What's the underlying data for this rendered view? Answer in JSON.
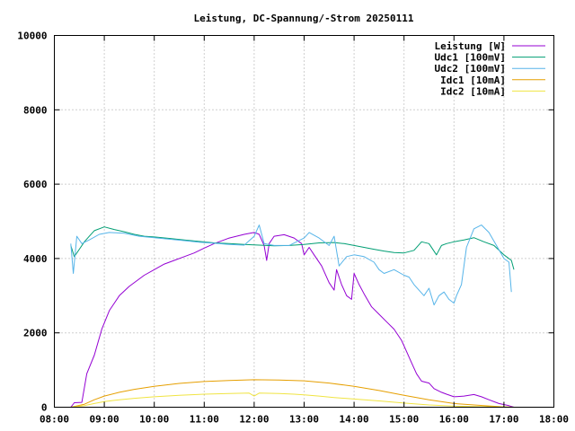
{
  "chart_data": {
    "type": "line",
    "title": "Leistung, DC-Spannung/-Strom 20250111",
    "xlabel": "",
    "ylabel": "",
    "xlim_hours": [
      8,
      18
    ],
    "ylim": [
      0,
      10000
    ],
    "x_ticks": [
      "08:00",
      "09:00",
      "10:00",
      "11:00",
      "12:00",
      "13:00",
      "14:00",
      "15:00",
      "16:00",
      "17:00",
      "18:00"
    ],
    "y_ticks": [
      "0",
      "2000",
      "4000",
      "6000",
      "8000",
      "10000"
    ],
    "grid": true,
    "legend_position": "top-right",
    "series": [
      {
        "name": "Leistung [W]",
        "color": "#9400d3",
        "points": [
          [
            8.33,
            0
          ],
          [
            8.4,
            120
          ],
          [
            8.55,
            130
          ],
          [
            8.65,
            900
          ],
          [
            8.8,
            1400
          ],
          [
            8.95,
            2100
          ],
          [
            9.1,
            2600
          ],
          [
            9.3,
            3000
          ],
          [
            9.5,
            3250
          ],
          [
            9.8,
            3550
          ],
          [
            10.0,
            3700
          ],
          [
            10.2,
            3850
          ],
          [
            10.4,
            3950
          ],
          [
            10.6,
            4050
          ],
          [
            10.8,
            4150
          ],
          [
            11.0,
            4280
          ],
          [
            11.2,
            4400
          ],
          [
            11.5,
            4550
          ],
          [
            11.8,
            4650
          ],
          [
            12.0,
            4700
          ],
          [
            12.1,
            4650
          ],
          [
            12.2,
            4350
          ],
          [
            12.25,
            3950
          ],
          [
            12.3,
            4400
          ],
          [
            12.4,
            4600
          ],
          [
            12.6,
            4640
          ],
          [
            12.8,
            4550
          ],
          [
            12.95,
            4400
          ],
          [
            13.0,
            4100
          ],
          [
            13.1,
            4300
          ],
          [
            13.2,
            4100
          ],
          [
            13.35,
            3800
          ],
          [
            13.45,
            3500
          ],
          [
            13.5,
            3350
          ],
          [
            13.6,
            3150
          ],
          [
            13.65,
            3700
          ],
          [
            13.75,
            3300
          ],
          [
            13.85,
            3000
          ],
          [
            13.95,
            2900
          ],
          [
            14.0,
            3600
          ],
          [
            14.1,
            3300
          ],
          [
            14.2,
            3050
          ],
          [
            14.35,
            2700
          ],
          [
            14.5,
            2500
          ],
          [
            14.65,
            2300
          ],
          [
            14.8,
            2100
          ],
          [
            14.95,
            1800
          ],
          [
            15.05,
            1500
          ],
          [
            15.15,
            1200
          ],
          [
            15.25,
            900
          ],
          [
            15.35,
            700
          ],
          [
            15.5,
            650
          ],
          [
            15.6,
            500
          ],
          [
            15.75,
            400
          ],
          [
            15.85,
            350
          ],
          [
            16.0,
            280
          ],
          [
            16.2,
            300
          ],
          [
            16.4,
            340
          ],
          [
            16.55,
            280
          ],
          [
            16.7,
            200
          ],
          [
            16.9,
            100
          ],
          [
            17.1,
            40
          ],
          [
            17.2,
            0
          ]
        ]
      },
      {
        "name": "Udc1 [100mV]",
        "color": "#009e73",
        "points": [
          [
            8.33,
            4350
          ],
          [
            8.4,
            4050
          ],
          [
            8.5,
            4250
          ],
          [
            8.6,
            4450
          ],
          [
            8.7,
            4600
          ],
          [
            8.8,
            4750
          ],
          [
            9.0,
            4850
          ],
          [
            9.2,
            4780
          ],
          [
            9.4,
            4720
          ],
          [
            9.6,
            4650
          ],
          [
            9.8,
            4600
          ],
          [
            10.0,
            4580
          ],
          [
            10.3,
            4540
          ],
          [
            10.6,
            4500
          ],
          [
            10.9,
            4460
          ],
          [
            11.2,
            4420
          ],
          [
            11.5,
            4400
          ],
          [
            11.8,
            4380
          ],
          [
            12.1,
            4360
          ],
          [
            12.4,
            4340
          ],
          [
            12.7,
            4350
          ],
          [
            13.0,
            4380
          ],
          [
            13.3,
            4420
          ],
          [
            13.6,
            4430
          ],
          [
            13.8,
            4400
          ],
          [
            14.0,
            4350
          ],
          [
            14.2,
            4300
          ],
          [
            14.4,
            4250
          ],
          [
            14.6,
            4200
          ],
          [
            14.8,
            4160
          ],
          [
            15.0,
            4150
          ],
          [
            15.2,
            4220
          ],
          [
            15.35,
            4450
          ],
          [
            15.5,
            4400
          ],
          [
            15.65,
            4100
          ],
          [
            15.75,
            4350
          ],
          [
            15.85,
            4400
          ],
          [
            16.0,
            4450
          ],
          [
            16.2,
            4500
          ],
          [
            16.4,
            4560
          ],
          [
            16.6,
            4450
          ],
          [
            16.8,
            4350
          ],
          [
            17.0,
            4100
          ],
          [
            17.15,
            3950
          ],
          [
            17.2,
            3700
          ]
        ]
      },
      {
        "name": "Udc2 [100mV]",
        "color": "#56b4e9",
        "points": [
          [
            8.33,
            4400
          ],
          [
            8.38,
            3600
          ],
          [
            8.45,
            4600
          ],
          [
            8.55,
            4400
          ],
          [
            8.7,
            4500
          ],
          [
            8.9,
            4650
          ],
          [
            9.1,
            4700
          ],
          [
            9.4,
            4680
          ],
          [
            9.7,
            4600
          ],
          [
            10.0,
            4560
          ],
          [
            10.3,
            4520
          ],
          [
            10.6,
            4480
          ],
          [
            10.9,
            4440
          ],
          [
            11.2,
            4410
          ],
          [
            11.5,
            4380
          ],
          [
            11.8,
            4360
          ],
          [
            12.0,
            4600
          ],
          [
            12.1,
            4900
          ],
          [
            12.2,
            4400
          ],
          [
            12.4,
            4350
          ],
          [
            12.7,
            4350
          ],
          [
            13.0,
            4550
          ],
          [
            13.1,
            4700
          ],
          [
            13.3,
            4550
          ],
          [
            13.5,
            4350
          ],
          [
            13.6,
            4600
          ],
          [
            13.7,
            3800
          ],
          [
            13.85,
            4050
          ],
          [
            14.0,
            4100
          ],
          [
            14.2,
            4050
          ],
          [
            14.4,
            3900
          ],
          [
            14.5,
            3700
          ],
          [
            14.6,
            3600
          ],
          [
            14.8,
            3700
          ],
          [
            15.0,
            3550
          ],
          [
            15.1,
            3500
          ],
          [
            15.2,
            3300
          ],
          [
            15.4,
            3000
          ],
          [
            15.5,
            3200
          ],
          [
            15.6,
            2750
          ],
          [
            15.7,
            3000
          ],
          [
            15.8,
            3100
          ],
          [
            15.9,
            2900
          ],
          [
            16.0,
            2800
          ],
          [
            16.05,
            3000
          ],
          [
            16.15,
            3300
          ],
          [
            16.25,
            4300
          ],
          [
            16.4,
            4800
          ],
          [
            16.55,
            4900
          ],
          [
            16.7,
            4700
          ],
          [
            16.85,
            4350
          ],
          [
            17.0,
            4000
          ],
          [
            17.1,
            3900
          ],
          [
            17.15,
            3100
          ]
        ]
      },
      {
        "name": "Idc1 [10mA]",
        "color": "#e69f00",
        "points": [
          [
            8.33,
            0
          ],
          [
            8.6,
            80
          ],
          [
            8.8,
            200
          ],
          [
            9.0,
            300
          ],
          [
            9.3,
            400
          ],
          [
            9.6,
            480
          ],
          [
            10.0,
            560
          ],
          [
            10.5,
            640
          ],
          [
            11.0,
            690
          ],
          [
            11.5,
            720
          ],
          [
            12.0,
            740
          ],
          [
            12.5,
            730
          ],
          [
            13.0,
            710
          ],
          [
            13.5,
            650
          ],
          [
            14.0,
            560
          ],
          [
            14.5,
            450
          ],
          [
            15.0,
            320
          ],
          [
            15.5,
            200
          ],
          [
            16.0,
            100
          ],
          [
            16.5,
            50
          ],
          [
            17.0,
            10
          ],
          [
            17.2,
            0
          ]
        ]
      },
      {
        "name": "Idc2 [10mA]",
        "color": "#f0e442",
        "points": [
          [
            8.33,
            0
          ],
          [
            8.6,
            40
          ],
          [
            8.8,
            100
          ],
          [
            9.0,
            150
          ],
          [
            9.3,
            200
          ],
          [
            9.6,
            240
          ],
          [
            10.0,
            280
          ],
          [
            10.5,
            320
          ],
          [
            11.0,
            350
          ],
          [
            11.5,
            370
          ],
          [
            11.9,
            380
          ],
          [
            12.0,
            300
          ],
          [
            12.1,
            380
          ],
          [
            12.5,
            370
          ],
          [
            12.8,
            350
          ],
          [
            13.0,
            330
          ],
          [
            13.3,
            300
          ],
          [
            13.6,
            260
          ],
          [
            14.0,
            220
          ],
          [
            14.5,
            170
          ],
          [
            15.0,
            110
          ],
          [
            15.5,
            60
          ],
          [
            16.0,
            30
          ],
          [
            16.5,
            15
          ],
          [
            17.0,
            5
          ],
          [
            17.2,
            0
          ]
        ]
      }
    ]
  }
}
